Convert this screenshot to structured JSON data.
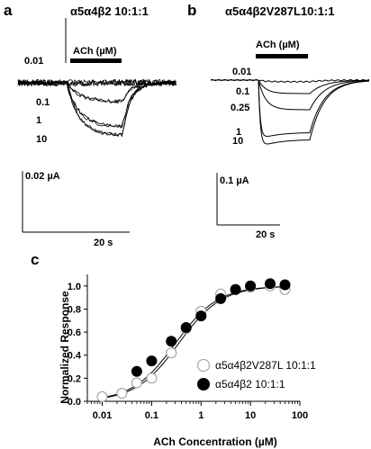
{
  "panel_a": {
    "letter": "a",
    "title": "α5α4β2 10:1:1",
    "bar_label": "ACh (µM)",
    "concentrations": [
      {
        "label": "0.01",
        "peak": 0.0
      },
      {
        "label": "0.1",
        "peak": 0.011
      },
      {
        "label": "1",
        "peak": 0.026
      },
      {
        "label": "10",
        "peak": 0.031
      }
    ],
    "scale_current": "0.02 µA",
    "scale_time": "20 s"
  },
  "panel_b": {
    "letter": "b",
    "title": "α5α4β2V287L10:1:1",
    "bar_label": "ACh (µM)",
    "concentrations": [
      {
        "label": "0.01",
        "peak": 0.003
      },
      {
        "label": "0.1",
        "peak": 0.025
      },
      {
        "label": "0.25",
        "peak": 0.055
      },
      {
        "label": "1",
        "peak": 0.11
      },
      {
        "label": "10",
        "peak": 0.125
      }
    ],
    "scale_current": "0.1 µA",
    "scale_time": "20 s"
  },
  "panel_c": {
    "letter": "c"
  },
  "chart_data": {
    "type": "scatter",
    "xlabel": "ACh Concentration (µM)",
    "ylabel": "Normalized Response",
    "xscale": "log",
    "xlim": [
      0.005,
      100
    ],
    "ylim": [
      0,
      1.1
    ],
    "x_ticks": [
      0.01,
      0.1,
      1,
      10,
      100
    ],
    "x_tick_labels": [
      "0.01",
      "0.1",
      "1",
      "10",
      "100"
    ],
    "y_ticks": [
      0.0,
      0.2,
      0.4,
      0.6,
      0.8,
      1.0
    ],
    "y_tick_labels": [
      "0.0",
      "0.2",
      "0.4",
      "0.6",
      "0.8",
      "1.0"
    ],
    "legend_position": "bottom-right",
    "series": [
      {
        "name": "α5α4β2V287L 10:1:1",
        "marker": "open-circle",
        "color": "#ffffff",
        "x": [
          0.01,
          0.025,
          0.05,
          0.1,
          0.25,
          0.5,
          1,
          2.5,
          5,
          10,
          25,
          50
        ],
        "y": [
          0.04,
          0.07,
          0.16,
          0.2,
          0.42,
          0.63,
          0.78,
          0.93,
          0.97,
          0.99,
          1.0,
          0.97
        ],
        "ec50": 0.35,
        "hill": 1.0
      },
      {
        "name": "α5α4β2 10:1:1",
        "marker": "filled-circle",
        "color": "#000000",
        "x": [
          0.05,
          0.1,
          0.25,
          0.5,
          1,
          2.5,
          5,
          10,
          25,
          50
        ],
        "y": [
          0.26,
          0.35,
          0.52,
          0.64,
          0.74,
          0.89,
          0.97,
          1.0,
          1.02,
          1.01
        ],
        "ec50": 0.3,
        "hill": 1.0
      }
    ]
  }
}
